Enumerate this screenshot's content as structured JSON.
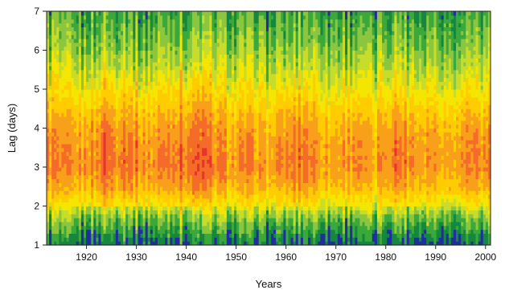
{
  "chart_data": {
    "type": "heatmap",
    "title": "",
    "xlabel": "Years",
    "ylabel": "Lag (days)",
    "xlim": [
      1912,
      2001
    ],
    "ylim": [
      1,
      7
    ],
    "x_ticks": [
      1920,
      1930,
      1940,
      1950,
      1960,
      1970,
      1980,
      1990,
      2000
    ],
    "y_ticks": [
      1,
      2,
      3,
      4,
      5,
      6,
      7
    ],
    "colormap": [
      "#1f2fa0",
      "#16873f",
      "#3aa83a",
      "#8cc63f",
      "#c8dc2a",
      "#f5e600",
      "#ffcc00",
      "#f9a01b",
      "#f46b2a",
      "#e8342a"
    ],
    "colormap_direction": "low to high",
    "profile": {
      "lags": [
        1.0,
        1.5,
        1.8,
        2.0,
        2.5,
        3.0,
        3.5,
        4.0,
        4.5,
        5.0,
        5.5,
        6.0,
        6.5,
        7.0
      ],
      "level": [
        0.5,
        2.0,
        3.2,
        4.6,
        6.4,
        7.2,
        7.0,
        6.6,
        5.8,
        4.8,
        3.9,
        3.1,
        2.4,
        1.8
      ]
    },
    "year_modifier": {
      "years": [
        1912,
        1917,
        1921,
        1924,
        1926,
        1929,
        1933,
        1936,
        1941,
        1943,
        1945,
        1949,
        1953,
        1956,
        1960,
        1964,
        1967,
        1971,
        1974,
        1978,
        1981,
        1984,
        1988,
        1992,
        1996,
        2001
      ],
      "values": [
        0.3,
        -0.1,
        0.2,
        1.2,
        0.5,
        0.9,
        0.1,
        0.6,
        1.1,
        1.4,
        0.4,
        0.0,
        0.3,
        -0.3,
        0.6,
        0.8,
        -0.2,
        0.1,
        0.4,
        -0.4,
        0.7,
        0.5,
        0.1,
        -0.2,
        0.5,
        0.0
      ]
    }
  }
}
